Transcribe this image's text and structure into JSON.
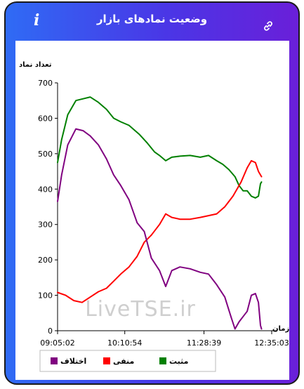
{
  "header": {
    "title": "وضعیت نمادهای بازار",
    "info_icon": "info-icon",
    "link_icon": "link-icon"
  },
  "watermark": "LiveTSE.ir",
  "chart_data": {
    "type": "line",
    "ylabel": "تعداد نماد",
    "xlabel": "زمان",
    "ylim": [
      0,
      700
    ],
    "yticks": [
      0,
      100,
      200,
      300,
      400,
      500,
      600,
      700
    ],
    "xticks": [
      "09:05:02",
      "10:10:54",
      "11:28:39",
      "12:35:03"
    ],
    "x_range_minutes": [
      0,
      210
    ],
    "xtick_positions_minutes": [
      0,
      65.9,
      143.6,
      210
    ],
    "legend_position": "bottom",
    "grid": false,
    "series": [
      {
        "name": "مثبت",
        "color": "#008000",
        "x": [
          0,
          4,
          10,
          18,
          25,
          32,
          40,
          48,
          55,
          62,
          70,
          80,
          88,
          95,
          100,
          106,
          112,
          120,
          130,
          140,
          148,
          156,
          162,
          168,
          174,
          178,
          182,
          186,
          190,
          194,
          197,
          199,
          200
        ],
        "y": [
          475,
          540,
          610,
          650,
          655,
          660,
          645,
          625,
          600,
          590,
          580,
          555,
          530,
          505,
          495,
          480,
          490,
          493,
          495,
          490,
          495,
          480,
          470,
          455,
          435,
          410,
          395,
          395,
          380,
          375,
          380,
          415,
          420
        ]
      },
      {
        "name": "منفی",
        "color": "#ff0000",
        "x": [
          0,
          8,
          16,
          24,
          32,
          40,
          48,
          55,
          62,
          70,
          78,
          85,
          92,
          100,
          106,
          112,
          120,
          130,
          140,
          148,
          156,
          164,
          172,
          180,
          186,
          190,
          194,
          197,
          199,
          200
        ],
        "y": [
          108,
          100,
          85,
          80,
          95,
          110,
          120,
          140,
          160,
          180,
          210,
          250,
          270,
          300,
          330,
          320,
          315,
          315,
          320,
          325,
          330,
          350,
          380,
          420,
          460,
          480,
          475,
          450,
          440,
          435
        ]
      },
      {
        "name": "اختلاف",
        "color": "#800080",
        "x": [
          0,
          4,
          10,
          18,
          25,
          32,
          40,
          48,
          55,
          62,
          70,
          78,
          85,
          92,
          100,
          106,
          112,
          120,
          130,
          140,
          148,
          156,
          164,
          170,
          174,
          178,
          182,
          186,
          190,
          194,
          197,
          199,
          200
        ],
        "y": [
          365,
          440,
          525,
          570,
          565,
          550,
          525,
          485,
          440,
          410,
          370,
          305,
          280,
          205,
          170,
          125,
          170,
          180,
          175,
          165,
          160,
          130,
          95,
          40,
          5,
          25,
          40,
          55,
          100,
          105,
          80,
          15,
          5
        ]
      }
    ]
  }
}
